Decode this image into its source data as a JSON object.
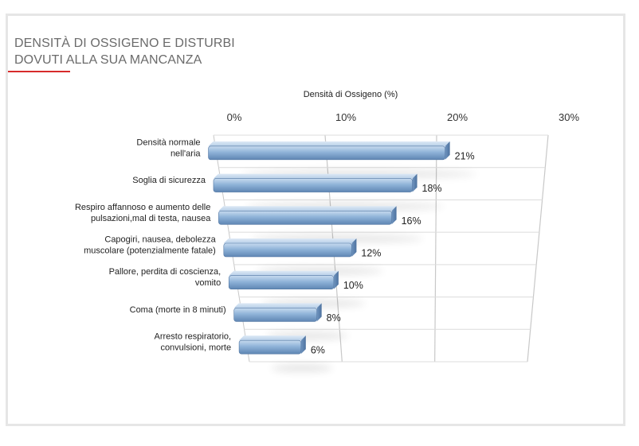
{
  "title": {
    "line1": "DENSITÀ DI OSSIGENO E DISTURBI",
    "line2": "DOVUTI ALLA SUA MANCANZA"
  },
  "colors": {
    "accent": "#d72b2b",
    "bar_light": "#bcd3ea",
    "bar_mid": "#8fb2d6",
    "bar_dark": "#5a82b0",
    "grid": "#c8c8c8",
    "card_border": "#e6e6e6"
  },
  "chart_data": {
    "type": "bar",
    "orientation": "horizontal",
    "perspective_3d": true,
    "xlabel": "Densità di Ossigeno (%)",
    "xlabel_position": "top",
    "xlim": [
      0,
      30
    ],
    "xticks": [
      0,
      10,
      20,
      30
    ],
    "tick_labels": [
      "0%",
      "10%",
      "20%",
      "30%"
    ],
    "grid": true,
    "legend": "none",
    "categories": [
      [
        "Densità normale",
        "nell'aria"
      ],
      [
        "Soglia di sicurezza"
      ],
      [
        "Respiro affannoso e aumento delle",
        "pulsazioni,mal di testa, nausea"
      ],
      [
        "Capogiri, nausea, debolezza",
        "muscolare (potenzialmente fatale)"
      ],
      [
        "Pallore, perdita di coscienza,",
        "vomito"
      ],
      [
        "Coma (morte in 8 minuti)"
      ],
      [
        "Arresto respiratorio,",
        "convulsioni, morte"
      ]
    ],
    "values": [
      21,
      18,
      16,
      12,
      10,
      8,
      6
    ],
    "data_labels": [
      "21%",
      "18%",
      "16%",
      "12%",
      "10%",
      "8%",
      "6%"
    ]
  }
}
